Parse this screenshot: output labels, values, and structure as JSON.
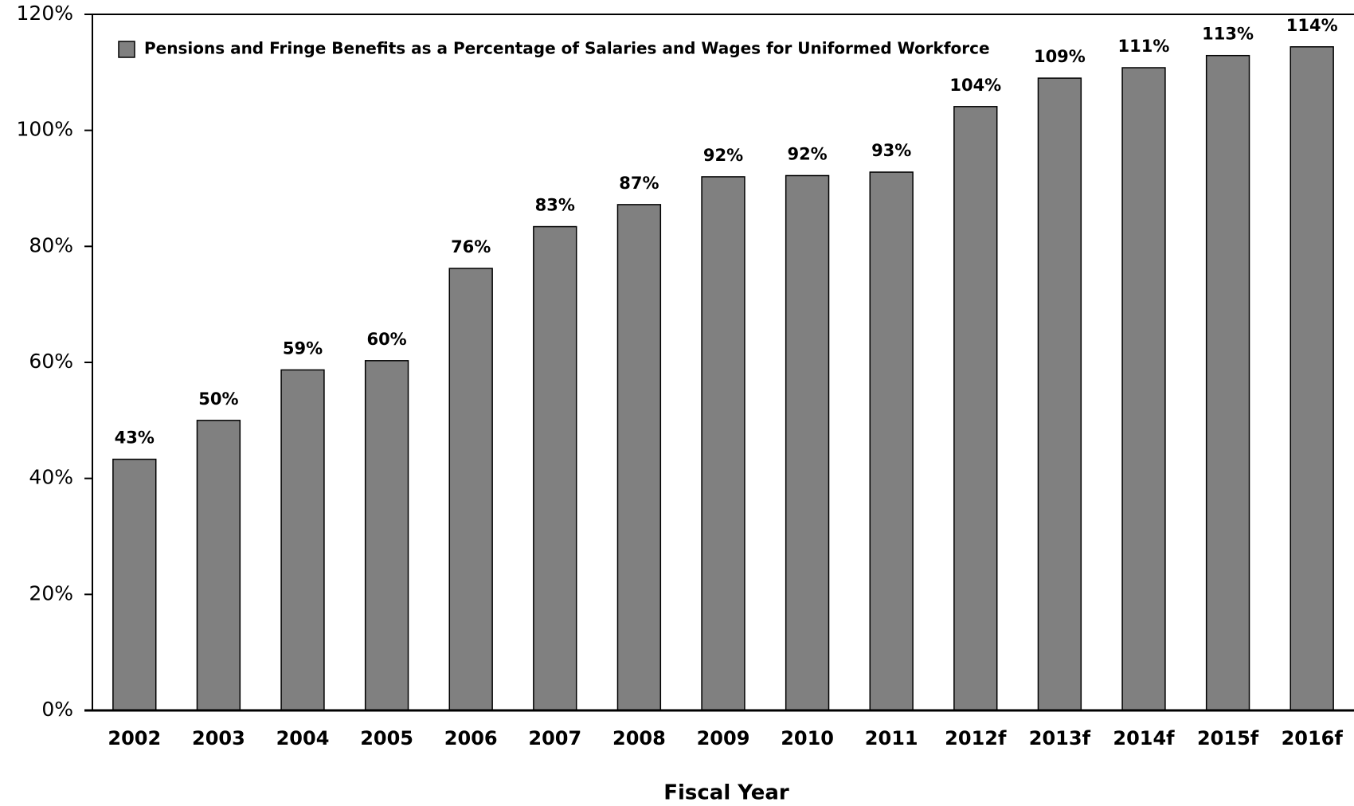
{
  "chart_data": {
    "type": "bar",
    "xlabel": "Fiscal Year",
    "categories": [
      "2002",
      "2003",
      "2004",
      "2005",
      "2006",
      "2007",
      "2008",
      "2009",
      "2010",
      "2011",
      "2012f",
      "2013f",
      "2014f",
      "2015f",
      "2016f"
    ],
    "series": [
      {
        "name": "Pensions and Fringe Benefits as a Percentage of Salaries and Wages for Uniformed Workforce",
        "color": "#808080",
        "values": [
          43.3,
          50.0,
          58.7,
          60.3,
          76.2,
          83.4,
          87.2,
          92.0,
          92.2,
          92.8,
          104.1,
          109.0,
          110.8,
          112.9,
          114.4
        ],
        "value_labels": [
          "43%",
          "50%",
          "59%",
          "60%",
          "76%",
          "83%",
          "87%",
          "92%",
          "92%",
          "93%",
          "104%",
          "109%",
          "111%",
          "113%",
          "114%"
        ]
      }
    ],
    "ylim": [
      0,
      120
    ],
    "yticks": [
      {
        "value": 0,
        "label": "0%"
      },
      {
        "value": 20,
        "label": "20%"
      },
      {
        "value": 40,
        "label": "40%"
      },
      {
        "value": 60,
        "label": "60%"
      },
      {
        "value": 80,
        "label": "80%"
      },
      {
        "value": 100,
        "label": "100%"
      },
      {
        "value": 120,
        "label": "120%"
      }
    ],
    "legend": "upper left"
  }
}
